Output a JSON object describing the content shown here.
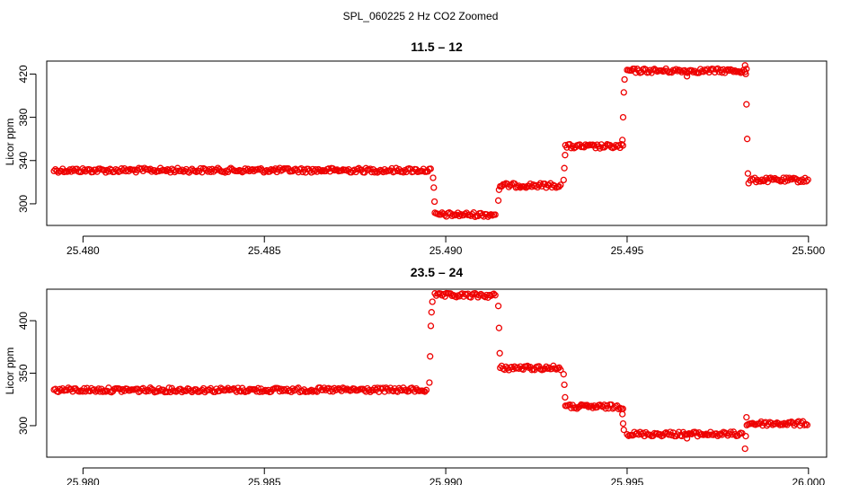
{
  "figure": {
    "title": "SPL_060225  2 Hz CO2 Zoomed"
  },
  "colors": {
    "points": "#ee0000",
    "axes": "#000000"
  },
  "chart_data": [
    {
      "type": "scatter",
      "title": "11.5 – 12",
      "xlabel": "",
      "ylabel": "Licor ppm",
      "xlim": [
        25.479,
        25.5005
      ],
      "ylim": [
        280,
        432
      ],
      "xticks": [
        25.48,
        25.485,
        25.49,
        25.495,
        25.5
      ],
      "xtick_labels": [
        "25.480",
        "25.485",
        "25.490",
        "25.495",
        "25.500"
      ],
      "yticks": [
        300,
        340,
        380,
        420
      ],
      "ytick_labels": [
        "300",
        "340",
        "380",
        "420"
      ],
      "grid": false,
      "legend": "none",
      "segments": [
        {
          "x_start": 25.4792,
          "x_end": 25.4896,
          "y": 331
        },
        {
          "x_start": 25.4897,
          "x_end": 25.4914,
          "y": 290
        },
        {
          "x_start": 25.4915,
          "x_end": 25.4932,
          "y": 317
        },
        {
          "x_start": 25.4933,
          "x_end": 25.4949,
          "y": 353
        },
        {
          "x_start": 25.495,
          "x_end": 25.4983,
          "y": 423
        },
        {
          "x_start": 25.4984,
          "x_end": 25.5,
          "y": 322
        }
      ],
      "transition_points": [
        {
          "x": 25.48965,
          "y": 324
        },
        {
          "x": 25.48967,
          "y": 315
        },
        {
          "x": 25.48969,
          "y": 302
        },
        {
          "x": 25.49145,
          "y": 303
        },
        {
          "x": 25.49147,
          "y": 313
        },
        {
          "x": 25.49325,
          "y": 322
        },
        {
          "x": 25.49327,
          "y": 333
        },
        {
          "x": 25.49329,
          "y": 345
        },
        {
          "x": 25.49487,
          "y": 359
        },
        {
          "x": 25.49489,
          "y": 380
        },
        {
          "x": 25.49491,
          "y": 403
        },
        {
          "x": 25.49493,
          "y": 415
        },
        {
          "x": 25.49665,
          "y": 418
        },
        {
          "x": 25.49825,
          "y": 428
        },
        {
          "x": 25.49827,
          "y": 420
        },
        {
          "x": 25.49829,
          "y": 392
        },
        {
          "x": 25.49831,
          "y": 360
        },
        {
          "x": 25.49833,
          "y": 328
        },
        {
          "x": 25.49835,
          "y": 319
        }
      ]
    },
    {
      "type": "scatter",
      "title": "23.5 – 24",
      "xlabel": "",
      "ylabel": "Licor ppm",
      "xlim": [
        25.979,
        26.0005
      ],
      "ylim": [
        270,
        430
      ],
      "xticks": [
        25.98,
        25.985,
        25.99,
        25.995,
        26.0
      ],
      "xtick_labels": [
        "25.980",
        "25.985",
        "25.990",
        "25.995",
        "26.000"
      ],
      "yticks": [
        300,
        350,
        400
      ],
      "ytick_labels": [
        "300",
        "350",
        "400"
      ],
      "grid": false,
      "legend": "none",
      "segments": [
        {
          "x_start": 25.9792,
          "x_end": 25.9895,
          "y": 334
        },
        {
          "x_start": 25.9897,
          "x_end": 25.9914,
          "y": 424
        },
        {
          "x_start": 25.9915,
          "x_end": 25.9932,
          "y": 355
        },
        {
          "x_start": 25.9933,
          "x_end": 25.9949,
          "y": 318
        },
        {
          "x_start": 25.995,
          "x_end": 25.9982,
          "y": 292
        },
        {
          "x_start": 25.9983,
          "x_end": 26.0,
          "y": 302
        }
      ],
      "transition_points": [
        {
          "x": 25.98955,
          "y": 341
        },
        {
          "x": 25.98957,
          "y": 366
        },
        {
          "x": 25.98959,
          "y": 395
        },
        {
          "x": 25.98961,
          "y": 408
        },
        {
          "x": 25.98963,
          "y": 418
        },
        {
          "x": 25.99145,
          "y": 414
        },
        {
          "x": 25.99147,
          "y": 393
        },
        {
          "x": 25.99149,
          "y": 369
        },
        {
          "x": 25.99325,
          "y": 349
        },
        {
          "x": 25.99327,
          "y": 339
        },
        {
          "x": 25.99329,
          "y": 327
        },
        {
          "x": 25.99487,
          "y": 311
        },
        {
          "x": 25.99489,
          "y": 302
        },
        {
          "x": 25.99491,
          "y": 296
        },
        {
          "x": 25.99665,
          "y": 288
        },
        {
          "x": 25.99825,
          "y": 278
        },
        {
          "x": 25.99827,
          "y": 290
        },
        {
          "x": 25.99829,
          "y": 308
        }
      ]
    }
  ]
}
